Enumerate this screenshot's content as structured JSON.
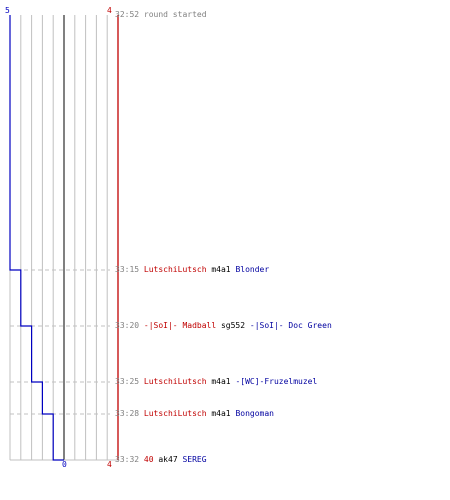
{
  "chart_data": {
    "type": "line",
    "blue_team": {
      "start_count": 5,
      "end_count": 0,
      "color": "#0000c0"
    },
    "red_team": {
      "start_count": 4,
      "end_count": 4,
      "color": "#c00000"
    },
    "columns": 10,
    "blue_steps": [
      {
        "time": "33:15",
        "count": 4
      },
      {
        "time": "33:20",
        "count": 3
      },
      {
        "time": "33:25",
        "count": 2
      },
      {
        "time": "33:28",
        "count": 1
      },
      {
        "time": "33:32",
        "count": 0
      }
    ]
  },
  "events": [
    {
      "time": "32:52",
      "parts": [
        {
          "text": "round started",
          "color": "gray"
        }
      ]
    },
    {
      "time": "33:15",
      "parts": [
        {
          "text": "LutschiLutsch",
          "color": "red"
        },
        {
          "text": " m4a1 ",
          "color": "blk"
        },
        {
          "text": "Blonder",
          "color": "blue"
        }
      ]
    },
    {
      "time": "33:20",
      "parts": [
        {
          "text": "-|SoI|- Madball",
          "color": "red"
        },
        {
          "text": " sg552 ",
          "color": "blk"
        },
        {
          "text": "-|SoI|- Doc Green",
          "color": "blue"
        }
      ]
    },
    {
      "time": "33:25",
      "parts": [
        {
          "text": "LutschiLutsch",
          "color": "red"
        },
        {
          "text": " m4a1 ",
          "color": "blk"
        },
        {
          "text": "-[WC]-Fruzelmuzel",
          "color": "blue"
        }
      ]
    },
    {
      "time": "33:28",
      "parts": [
        {
          "text": "LutschiLutsch",
          "color": "red"
        },
        {
          "text": " m4a1 ",
          "color": "blk"
        },
        {
          "text": "Bongoman",
          "color": "blue"
        }
      ]
    },
    {
      "time": "33:32",
      "parts": [
        {
          "text": "40",
          "color": "red"
        },
        {
          "text": " ak47 ",
          "color": "blk"
        },
        {
          "text": "SEREG",
          "color": "blue"
        }
      ]
    }
  ]
}
